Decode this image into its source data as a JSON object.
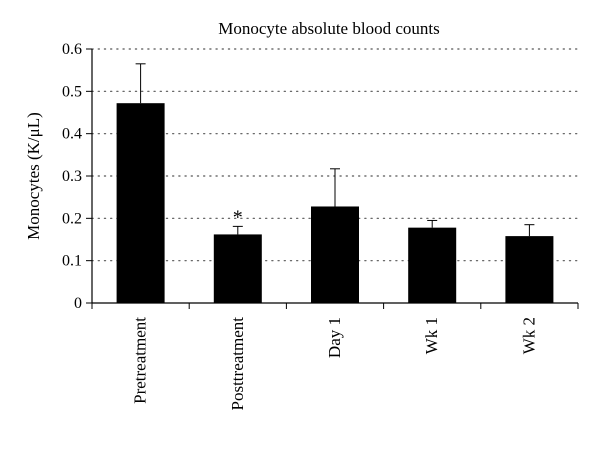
{
  "chart_data": {
    "type": "bar",
    "title": "Monocyte absolute blood counts",
    "xlabel": "",
    "ylabel": "Monocytes (K/μL)",
    "ylim": [
      0,
      0.6
    ],
    "yticks": [
      "0",
      "0.1",
      "0.2",
      "0.3",
      "0.4",
      "0.5",
      "0.6"
    ],
    "categories": [
      "Pretreatment",
      "Posttreatment",
      "Day 1",
      "Wk 1",
      "Wk 2"
    ],
    "values": [
      0.472,
      0.162,
      0.228,
      0.178,
      0.158
    ],
    "error_upper": [
      0.565,
      0.181,
      0.317,
      0.195,
      0.185
    ],
    "annotations": [
      {
        "category": "Posttreatment",
        "text": "*"
      }
    ],
    "grid": "horizontal dotted",
    "bar_color": "#000000"
  }
}
